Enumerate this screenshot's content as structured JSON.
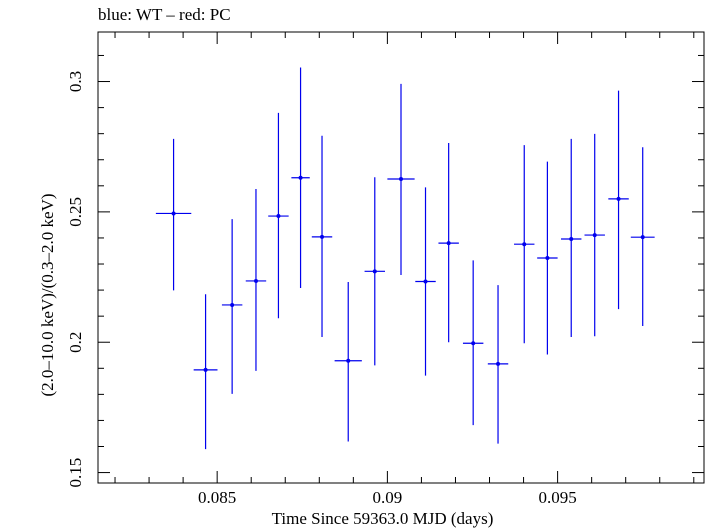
{
  "chart_data": {
    "type": "scatter",
    "title": "blue: WT – red: PC",
    "xlabel": "Time Since 59363.0 MJD (days)",
    "ylabel": "(2.0–10.0 keV)/(0.3–2.0 keV)",
    "xlim": [
      0.0815,
      0.0993
    ],
    "ylim": [
      0.146,
      0.319
    ],
    "x_ticks": [
      {
        "value": 0.085,
        "label": "0.085"
      },
      {
        "value": 0.09,
        "label": "0.09"
      },
      {
        "value": 0.095,
        "label": "0.095"
      }
    ],
    "y_ticks": [
      {
        "value": 0.15,
        "label": "0.15"
      },
      {
        "value": 0.2,
        "label": "0.2"
      },
      {
        "value": 0.25,
        "label": "0.25"
      },
      {
        "value": 0.3,
        "label": "0.3"
      }
    ],
    "grid": false,
    "series": [
      {
        "name": "WT",
        "color": "#0000ee",
        "points": [
          {
            "x": 0.08372,
            "xerr": 0.00052,
            "y": 0.2494,
            "yerr_low": 0.0295,
            "yerr_high": 0.0286
          },
          {
            "x": 0.08466,
            "xerr": 0.00035,
            "y": 0.1894,
            "yerr_low": 0.0304,
            "yerr_high": 0.029
          },
          {
            "x": 0.08544,
            "xerr": 0.0003,
            "y": 0.2143,
            "yerr_low": 0.0341,
            "yerr_high": 0.0329
          },
          {
            "x": 0.08614,
            "xerr": 0.0003,
            "y": 0.2235,
            "yerr_low": 0.0345,
            "yerr_high": 0.0353
          },
          {
            "x": 0.0868,
            "xerr": 0.0003,
            "y": 0.2484,
            "yerr_low": 0.0392,
            "yerr_high": 0.0396
          },
          {
            "x": 0.08745,
            "xerr": 0.00027,
            "y": 0.2631,
            "yerr_low": 0.0423,
            "yerr_high": 0.0423
          },
          {
            "x": 0.08808,
            "xerr": 0.0003,
            "y": 0.2404,
            "yerr_low": 0.0384,
            "yerr_high": 0.0388
          },
          {
            "x": 0.08885,
            "xerr": 0.0004,
            "y": 0.1929,
            "yerr_low": 0.031,
            "yerr_high": 0.0302
          },
          {
            "x": 0.08963,
            "xerr": 0.0003,
            "y": 0.2272,
            "yerr_low": 0.0361,
            "yerr_high": 0.0361
          },
          {
            "x": 0.0904,
            "xerr": 0.0004,
            "y": 0.2626,
            "yerr_low": 0.0368,
            "yerr_high": 0.0365
          },
          {
            "x": 0.09112,
            "xerr": 0.0003,
            "y": 0.2233,
            "yerr_low": 0.0361,
            "yerr_high": 0.0361
          },
          {
            "x": 0.0918,
            "xerr": 0.0003,
            "y": 0.238,
            "yerr_low": 0.038,
            "yerr_high": 0.0384
          },
          {
            "x": 0.09252,
            "xerr": 0.0003,
            "y": 0.1996,
            "yerr_low": 0.0314,
            "yerr_high": 0.0318
          },
          {
            "x": 0.09325,
            "xerr": 0.0003,
            "y": 0.1917,
            "yerr_low": 0.0306,
            "yerr_high": 0.0302
          },
          {
            "x": 0.09402,
            "xerr": 0.0003,
            "y": 0.2376,
            "yerr_low": 0.038,
            "yerr_high": 0.038
          },
          {
            "x": 0.0947,
            "xerr": 0.0003,
            "y": 0.2323,
            "yerr_low": 0.037,
            "yerr_high": 0.037
          },
          {
            "x": 0.0954,
            "xerr": 0.0003,
            "y": 0.2396,
            "yerr_low": 0.0376,
            "yerr_high": 0.0384
          },
          {
            "x": 0.09609,
            "xerr": 0.0003,
            "y": 0.2411,
            "yerr_low": 0.0388,
            "yerr_high": 0.0388
          },
          {
            "x": 0.09679,
            "xerr": 0.0003,
            "y": 0.255,
            "yerr_low": 0.0423,
            "yerr_high": 0.0415
          },
          {
            "x": 0.0975,
            "xerr": 0.00035,
            "y": 0.2403,
            "yerr_low": 0.0341,
            "yerr_high": 0.0345
          }
        ]
      }
    ]
  }
}
